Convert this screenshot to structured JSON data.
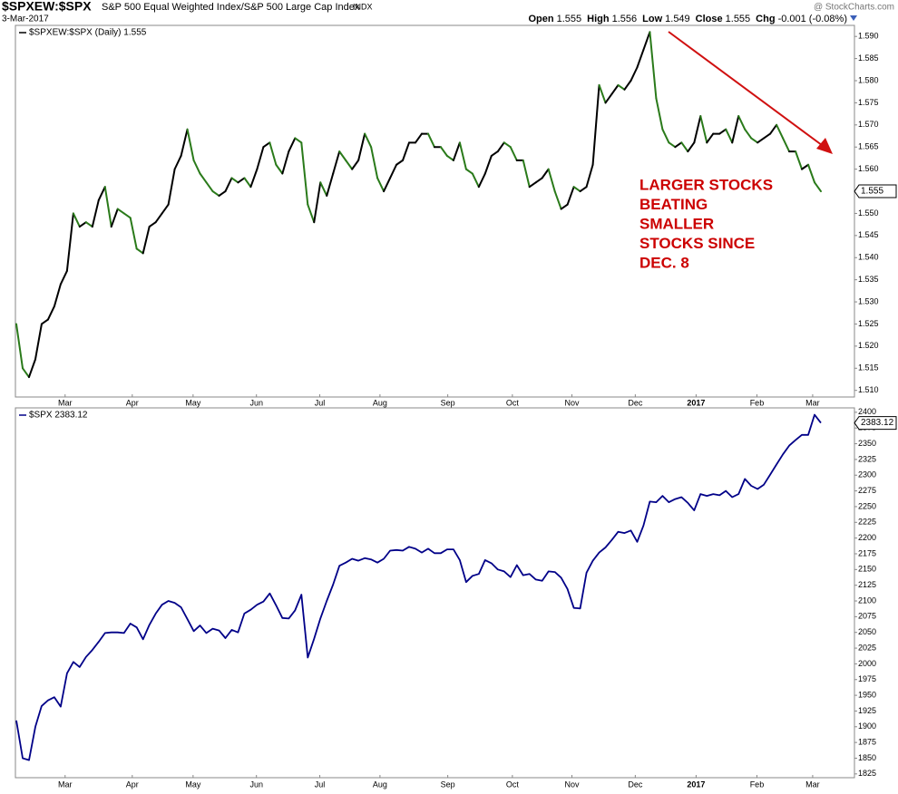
{
  "header": {
    "symbol": "$SPXEW:$SPX",
    "description": "S&P 500 Equal Weighted Index/S&P 500 Large Cap Index",
    "exchange": "INDX",
    "source": "@ StockCharts.com",
    "date": "3-Mar-2017",
    "quote": [
      {
        "label": "Open",
        "value": "1.555"
      },
      {
        "label": "High",
        "value": "1.556"
      },
      {
        "label": "Low",
        "value": "1.549"
      },
      {
        "label": "Close",
        "value": "1.555"
      },
      {
        "label": "Chg",
        "value": "-0.001 (-0.08%)"
      }
    ]
  },
  "chart_data": [
    {
      "type": "updown-line",
      "series": [
        {
          "name": "$SPXEW:$SPX (Daily) 1.555",
          "up_color": "#000000",
          "down_color": "#2a7a1a",
          "values": [
            1.525,
            1.515,
            1.513,
            1.517,
            1.525,
            1.526,
            1.529,
            1.534,
            1.537,
            1.55,
            1.547,
            1.548,
            1.547,
            1.553,
            1.556,
            1.547,
            1.551,
            1.55,
            1.549,
            1.542,
            1.541,
            1.547,
            1.548,
            1.55,
            1.552,
            1.56,
            1.563,
            1.569,
            1.562,
            1.559,
            1.557,
            1.555,
            1.554,
            1.555,
            1.558,
            1.557,
            1.558,
            1.556,
            1.56,
            1.565,
            1.566,
            1.561,
            1.559,
            1.564,
            1.567,
            1.566,
            1.552,
            1.548,
            1.557,
            1.554,
            1.559,
            1.564,
            1.562,
            1.56,
            1.562,
            1.568,
            1.565,
            1.558,
            1.555,
            1.558,
            1.561,
            1.562,
            1.566,
            1.566,
            1.568,
            1.568,
            1.565,
            1.565,
            1.563,
            1.562,
            1.566,
            1.56,
            1.559,
            1.556,
            1.559,
            1.563,
            1.564,
            1.566,
            1.565,
            1.562,
            1.562,
            1.556,
            1.557,
            1.558,
            1.56,
            1.555,
            1.551,
            1.552,
            1.556,
            1.555,
            1.556,
            1.561,
            1.579,
            1.575,
            1.577,
            1.579,
            1.578,
            1.58,
            1.583,
            1.587,
            1.591,
            1.576,
            1.569,
            1.566,
            1.565,
            1.566,
            1.564,
            1.566,
            1.572,
            1.566,
            1.568,
            1.568,
            1.569,
            1.566,
            1.572,
            1.569,
            1.567,
            1.566,
            1.567,
            1.568,
            1.57,
            1.567,
            1.564,
            1.564,
            1.56,
            1.561,
            1.557,
            1.555
          ]
        }
      ],
      "xlim": [
        0,
        127
      ],
      "xticks": [
        {
          "value": 7.7,
          "label": "Mar"
        },
        {
          "value": 18.3,
          "label": "Apr"
        },
        {
          "value": 27.9,
          "label": "May"
        },
        {
          "value": 37.9,
          "label": "Jun"
        },
        {
          "value": 47.9,
          "label": "Jul"
        },
        {
          "value": 57.4,
          "label": "Aug"
        },
        {
          "value": 68.1,
          "label": "Sep"
        },
        {
          "value": 78.3,
          "label": "Oct"
        },
        {
          "value": 87.7,
          "label": "Nov"
        },
        {
          "value": 97.7,
          "label": "Dec"
        },
        {
          "value": 107.3,
          "label": "2017"
        },
        {
          "value": 116.9,
          "label": "Feb"
        },
        {
          "value": 125.7,
          "label": "Mar"
        }
      ],
      "ylim": [
        1.5085,
        1.5925
      ],
      "yticks": [
        {
          "value": 1.51,
          "label": "1.510"
        },
        1.515,
        {
          "value": 1.52,
          "label": "1.520"
        },
        1.525,
        {
          "value": 1.53,
          "label": "1.530"
        },
        1.535,
        {
          "value": 1.54,
          "label": "1.540"
        },
        1.545,
        {
          "value": 1.55,
          "label": "1.550"
        },
        {
          "value": 1.56,
          "label": "1.560"
        },
        1.565,
        {
          "value": 1.57,
          "label": "1.570"
        },
        1.575,
        {
          "value": 1.58,
          "label": "1.580"
        },
        1.585,
        {
          "value": 1.59,
          "label": "1.590"
        }
      ],
      "grid": false,
      "annotation": {
        "lines": [
          "LARGER STOCKS",
          "BEATING",
          "SMALLER",
          "STOCKS SINCE",
          "DEC. 8"
        ],
        "color": "#cc0000"
      }
    },
    {
      "type": "line",
      "series": [
        {
          "name": "$SPX 2383.12",
          "color": "#000088",
          "values": [
            1910,
            1850,
            1847,
            1900,
            1933,
            1942,
            1947,
            1932,
            1985,
            2003,
            1995,
            2011,
            2022,
            2035,
            2049,
            2050,
            2050,
            2049,
            2064,
            2058,
            2039,
            2062,
            2080,
            2094,
            2100,
            2097,
            2090,
            2071,
            2052,
            2061,
            2049,
            2056,
            2053,
            2041,
            2054,
            2050,
            2080,
            2086,
            2094,
            2099,
            2112,
            2093,
            2073,
            2072,
            2085,
            2110,
            2010,
            2040,
            2072,
            2100,
            2126,
            2156,
            2161,
            2167,
            2164,
            2168,
            2166,
            2161,
            2167,
            2180,
            2181,
            2180,
            2186,
            2183,
            2177,
            2183,
            2176,
            2176,
            2182,
            2182,
            2165,
            2130,
            2140,
            2143,
            2165,
            2160,
            2150,
            2147,
            2138,
            2157,
            2141,
            2143,
            2134,
            2132,
            2147,
            2146,
            2137,
            2119,
            2089,
            2088,
            2145,
            2164,
            2177,
            2185,
            2197,
            2210,
            2208,
            2212,
            2194,
            2220,
            2258,
            2257,
            2267,
            2257,
            2262,
            2265,
            2256,
            2244,
            2270,
            2267,
            2270,
            2268,
            2275,
            2265,
            2270,
            2294,
            2283,
            2278,
            2285,
            2301,
            2317,
            2333,
            2347,
            2356,
            2364,
            2364,
            2396,
            2383.12
          ]
        }
      ],
      "xlim": [
        0,
        127
      ],
      "xticks": [
        {
          "value": 7.7,
          "label": "Mar"
        },
        {
          "value": 18.3,
          "label": "Apr"
        },
        {
          "value": 27.9,
          "label": "May"
        },
        {
          "value": 37.9,
          "label": "Jun"
        },
        {
          "value": 47.9,
          "label": "Jul"
        },
        {
          "value": 57.4,
          "label": "Aug"
        },
        {
          "value": 68.1,
          "label": "Sep"
        },
        {
          "value": 78.3,
          "label": "Oct"
        },
        {
          "value": 87.7,
          "label": "Nov"
        },
        {
          "value": 97.7,
          "label": "Dec"
        },
        {
          "value": 107.3,
          "label": "2017"
        },
        {
          "value": 116.9,
          "label": "Feb"
        },
        {
          "value": 125.7,
          "label": "Mar"
        }
      ],
      "ylim": [
        1819,
        2407
      ],
      "yticks": [
        1825,
        1850,
        1875,
        1900,
        1925,
        1950,
        1975,
        2000,
        2025,
        2050,
        2075,
        2100,
        2125,
        2150,
        2175,
        2200,
        2225,
        2250,
        2275,
        2300,
        2325,
        2350,
        2375,
        2400
      ],
      "grid": false
    }
  ]
}
